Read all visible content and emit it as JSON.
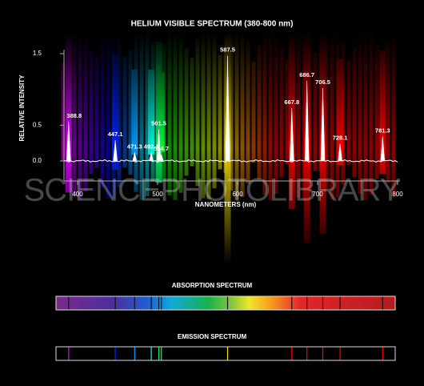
{
  "chart_data": {
    "type": "spectrum",
    "title": "HELIUM VISIBLE SPECTRUM (380-800 nm)",
    "y_label": "RELATIVE INTENSITY",
    "x_label": "NANOMETERS (nm)",
    "x": [
      388.8,
      447.1,
      471.3,
      492.1,
      501.5,
      504.7,
      587.5,
      667.8,
      686.7,
      706.5,
      728.1,
      781.3
    ],
    "values": [
      0.55,
      0.29,
      0.12,
      0.12,
      0.44,
      0.09,
      1.47,
      0.74,
      1.12,
      1.02,
      0.24,
      0.34
    ],
    "color": "#ffffff",
    "xlim": [
      380,
      800
    ],
    "xticks": [
      400,
      500,
      600,
      700,
      800
    ],
    "ylim": [
      0,
      1.5
    ],
    "yticks": [
      {
        "value": 0,
        "label": "0.0"
      },
      0.5,
      1.5
    ]
  },
  "watermark": "SCIENCEPHOTOLIBRARY",
  "absorption_spectrum": {
    "title": "ABSORPTION SPECTRUM"
  },
  "emission_spectrum": {
    "title": "EMISSION SPECTRUM"
  }
}
